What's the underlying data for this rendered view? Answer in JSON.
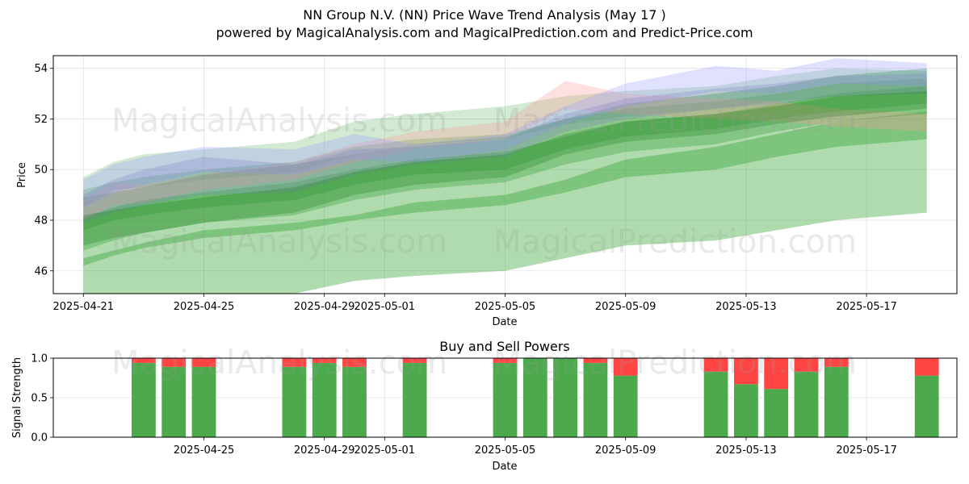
{
  "title": "NN Group N.V. (NN) Price Wave Trend Analysis (May 17 )",
  "subtitle": "powered by MagicalAnalysis.com and MagicalPrediction.com and Predict-Price.com",
  "watermarks": [
    "MagicalAnalysis.com",
    "MagicalPrediction.com"
  ],
  "chart_data": [
    {
      "type": "area",
      "title": "",
      "xlabel": "Date",
      "ylabel": "Price",
      "x_range": [
        "2025-04-20",
        "2025-05-20"
      ],
      "ylim": [
        45.1,
        54.5
      ],
      "grid": true,
      "x_ticks": [
        "2025-04-21",
        "2025-04-25",
        "2025-04-29",
        "2025-05-01",
        "2025-05-05",
        "2025-05-09",
        "2025-05-13",
        "2025-05-17"
      ],
      "y_ticks": [
        46,
        48,
        50,
        52,
        54
      ],
      "dates": [
        "2025-04-21",
        "2025-04-22",
        "2025-04-23",
        "2025-04-25",
        "2025-04-28",
        "2025-04-30",
        "2025-05-02",
        "2025-05-05",
        "2025-05-07",
        "2025-05-09",
        "2025-05-12",
        "2025-05-14",
        "2025-05-16",
        "2025-05-19"
      ],
      "bands": [
        {
          "color": "#2ca02c",
          "opacity": 0.38,
          "upper": [
            46.5,
            46.8,
            47.1,
            47.6,
            47.9,
            48.2,
            48.7,
            49.0,
            49.6,
            50.4,
            50.9,
            51.4,
            51.9,
            52.3
          ],
          "lower": [
            44.8,
            44.8,
            44.8,
            44.8,
            45.1,
            45.6,
            45.8,
            46.0,
            46.5,
            47.0,
            47.2,
            47.6,
            48.0,
            48.3
          ]
        },
        {
          "color": "#2ca02c",
          "opacity": 0.38,
          "upper": [
            48.9,
            49.1,
            49.3,
            49.8,
            50.2,
            50.6,
            51.0,
            51.3,
            52.0,
            52.6,
            53.0,
            53.3,
            53.7,
            54.0
          ],
          "lower": [
            46.2,
            46.6,
            46.9,
            47.3,
            47.6,
            48.0,
            48.3,
            48.6,
            49.1,
            49.7,
            50.0,
            50.5,
            50.9,
            51.2
          ]
        },
        {
          "color": "#2ca02c",
          "opacity": 0.32,
          "upper": [
            48.1,
            48.5,
            48.8,
            49.1,
            49.5,
            50.0,
            50.4,
            50.7,
            51.3,
            51.9,
            52.2,
            52.6,
            53.0,
            53.3
          ],
          "lower": [
            46.8,
            47.2,
            47.5,
            47.9,
            48.2,
            48.8,
            49.2,
            49.5,
            50.2,
            50.7,
            51.0,
            51.5,
            51.9,
            52.2
          ]
        },
        {
          "color": "#2ca02c",
          "opacity": 0.22,
          "upper": [
            49.7,
            50.3,
            50.6,
            50.8,
            51.1,
            51.9,
            52.2,
            52.5,
            52.9,
            53.1,
            53.3,
            53.7,
            54.0,
            53.9
          ],
          "lower": [
            48.5,
            49.2,
            49.3,
            49.6,
            49.9,
            50.6,
            51.0,
            51.2,
            51.8,
            52.1,
            52.4,
            52.7,
            52.9,
            53.0
          ]
        },
        {
          "color": "#2ca02c",
          "opacity": 0.28,
          "upper": [
            49.2,
            49.5,
            49.7,
            50.0,
            50.3,
            50.9,
            51.2,
            51.4,
            52.0,
            52.4,
            52.7,
            53.0,
            53.4,
            53.6
          ],
          "lower": [
            47.6,
            48.0,
            48.2,
            48.5,
            48.8,
            49.4,
            49.8,
            50.0,
            50.8,
            51.3,
            51.6,
            52.0,
            52.3,
            52.6
          ]
        },
        {
          "color": "#ff9999",
          "opacity": 0.3,
          "upper": [
            48.8,
            49.5,
            49.4,
            49.8,
            50.3,
            51.0,
            51.5,
            51.9,
            53.5,
            53.0,
            52.8,
            52.7,
            52.4,
            52.2
          ],
          "lower": [
            48.0,
            48.6,
            48.7,
            49.2,
            49.6,
            50.3,
            50.8,
            51.2,
            52.4,
            52.2,
            52.0,
            51.9,
            51.7,
            51.5
          ]
        },
        {
          "color": "#9999ff",
          "opacity": 0.3,
          "upper": [
            49.6,
            50.2,
            50.5,
            50.9,
            50.8,
            51.4,
            51.0,
            51.4,
            52.5,
            53.4,
            54.1,
            53.9,
            54.4,
            54.2
          ],
          "lower": [
            48.5,
            49.1,
            49.4,
            49.9,
            49.8,
            50.4,
            50.3,
            50.8,
            51.8,
            52.5,
            53.1,
            53.0,
            53.4,
            53.3
          ]
        },
        {
          "color": "#7f7fcc",
          "opacity": 0.28,
          "upper": [
            49.0,
            49.6,
            50.0,
            50.5,
            50.2,
            50.8,
            50.9,
            51.2,
            52.2,
            52.8,
            53.2,
            53.4,
            53.7,
            53.8
          ],
          "lower": [
            47.9,
            48.3,
            48.6,
            49.0,
            49.1,
            49.8,
            50.2,
            50.5,
            51.5,
            52.0,
            52.4,
            52.6,
            52.9,
            53.0
          ]
        },
        {
          "color": "#1f7f1f",
          "opacity": 0.3,
          "upper": [
            48.2,
            48.4,
            48.6,
            48.9,
            49.3,
            49.9,
            50.3,
            50.6,
            51.4,
            51.9,
            52.2,
            52.5,
            52.9,
            53.1
          ],
          "lower": [
            47.0,
            47.3,
            47.5,
            47.9,
            48.3,
            49.0,
            49.4,
            49.7,
            50.6,
            51.1,
            51.4,
            51.8,
            52.1,
            52.4
          ]
        }
      ]
    },
    {
      "type": "bar",
      "title": "Buy and Sell Powers",
      "xlabel": "Date",
      "ylabel": "Signal Strength",
      "ylim": [
        0,
        1
      ],
      "y_ticks": [
        "0.0",
        "0.5",
        "1.0"
      ],
      "grid": true,
      "x_ticks": [
        "2025-04-25",
        "2025-04-29",
        "2025-05-01",
        "2025-05-05",
        "2025-05-09",
        "2025-05-13",
        "2025-05-17"
      ],
      "series": [
        {
          "color": "#4caa4c"
        },
        {
          "color": "#ff4444"
        }
      ],
      "dates": [
        "2025-04-23",
        "2025-04-24",
        "2025-04-25",
        "2025-04-28",
        "2025-04-29",
        "2025-04-30",
        "2025-05-02",
        "2025-05-05",
        "2025-05-06",
        "2025-05-07",
        "2025-05-08",
        "2025-05-09",
        "2025-05-12",
        "2025-05-13",
        "2025-05-14",
        "2025-05-15",
        "2025-05-16",
        "2025-05-19"
      ],
      "buy": [
        0.94,
        0.89,
        0.89,
        0.89,
        0.94,
        0.89,
        0.94,
        0.94,
        1.0,
        1.0,
        0.94,
        0.78,
        0.83,
        0.67,
        0.61,
        0.83,
        0.89,
        0.78
      ]
    }
  ]
}
